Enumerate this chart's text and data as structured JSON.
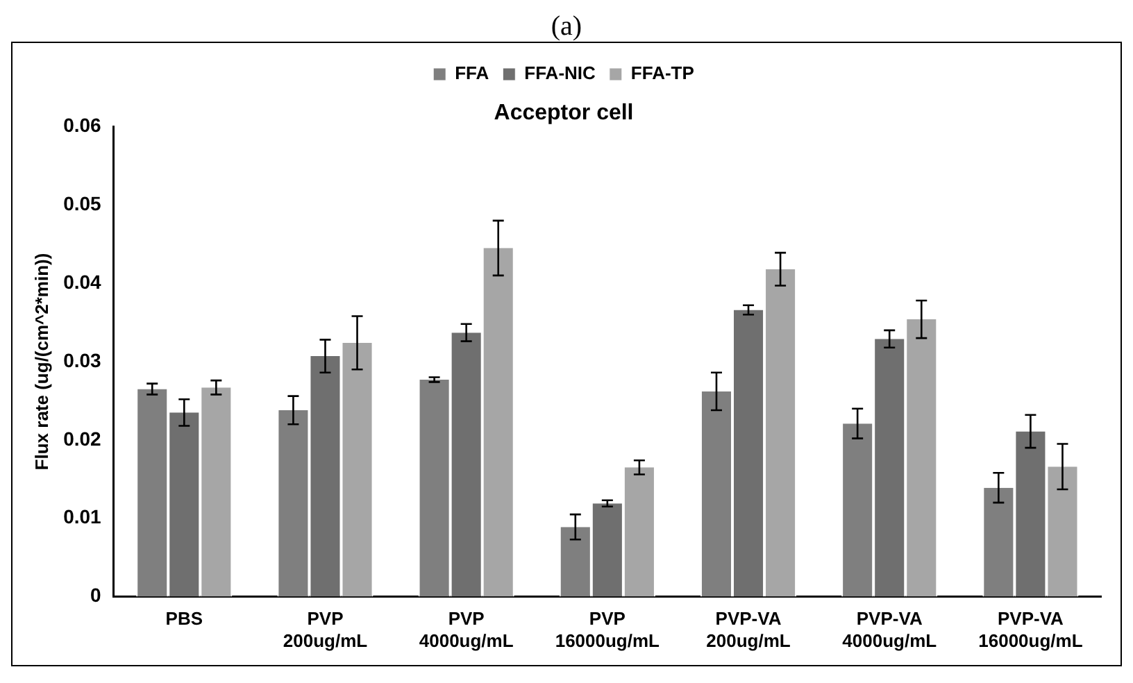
{
  "chart_data": {
    "type": "bar",
    "title": "Acceptor cell",
    "ylabel": "Flux rate (ug/(cm^2*min))",
    "annotations": [
      "(a)"
    ],
    "categories": [
      "PBS",
      "PVP 200ug/mL",
      "PVP 4000ug/mL",
      "PVP 16000ug/mL",
      "PVP-VA 200ug/mL",
      "PVP-VA 4000ug/mL",
      "PVP-VA 16000ug/mL"
    ],
    "series": [
      {
        "name": "FFA",
        "color": "#7f7f7f",
        "values": [
          0.0265,
          0.0238,
          0.0277,
          0.0089,
          0.0262,
          0.0221,
          0.0139
        ],
        "errors": [
          0.0007,
          0.0018,
          0.0003,
          0.0016,
          0.0024,
          0.0019,
          0.0019
        ]
      },
      {
        "name": "FFA-NIC",
        "color": "#6f6f6f",
        "values": [
          0.0235,
          0.0307,
          0.0337,
          0.0119,
          0.0366,
          0.0329,
          0.0211
        ],
        "errors": [
          0.0017,
          0.0021,
          0.0011,
          0.0004,
          0.0006,
          0.0011,
          0.0021
        ]
      },
      {
        "name": "FFA-TP",
        "color": "#a6a6a6",
        "values": [
          0.0267,
          0.0324,
          0.0445,
          0.0165,
          0.0418,
          0.0354,
          0.0166
        ],
        "errors": [
          0.0009,
          0.0034,
          0.0035,
          0.0009,
          0.0021,
          0.0024,
          0.0029
        ]
      }
    ],
    "ylim": [
      0,
      0.06
    ],
    "yticks": [
      0,
      0.01,
      0.02,
      0.03,
      0.04,
      0.05,
      0.06
    ],
    "grid": false,
    "legend": "top"
  }
}
